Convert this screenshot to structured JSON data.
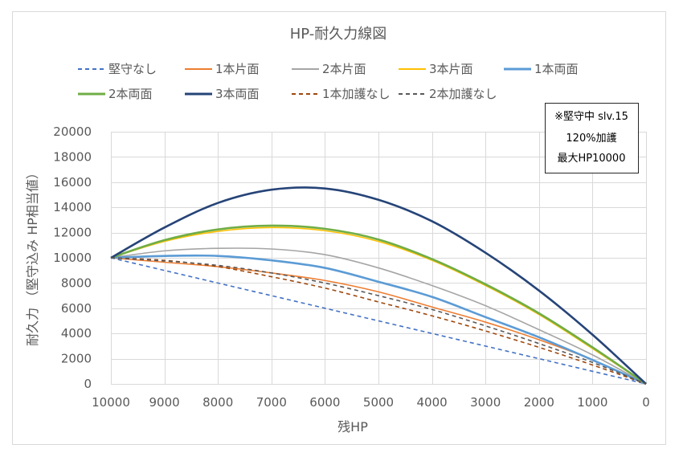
{
  "chart_data": {
    "type": "line",
    "title": "HP-耐久力線図",
    "xlabel": "残HP",
    "ylabel": "耐久力 （堅守込み HP相当値）",
    "xlim": [
      10000,
      0
    ],
    "ylim": [
      0,
      20000
    ],
    "x_reversed": true,
    "x_ticks": [
      "10000",
      "9000",
      "8000",
      "7000",
      "6000",
      "5000",
      "4000",
      "3000",
      "2000",
      "1000",
      "0"
    ],
    "y_ticks": [
      "0",
      "2000",
      "4000",
      "6000",
      "8000",
      "10000",
      "12000",
      "14000",
      "16000",
      "18000",
      "20000"
    ],
    "grid": true,
    "legend_position": "top",
    "x": [
      10000,
      9000,
      8000,
      7000,
      6000,
      5000,
      4000,
      3000,
      2000,
      1000,
      0
    ],
    "series": [
      {
        "name": "堅守なし",
        "color": "#4472C4",
        "dash": true,
        "width": 1.6,
        "values": [
          10000,
          9000,
          8000,
          7000,
          6000,
          5000,
          4000,
          3000,
          2000,
          1000,
          0
        ]
      },
      {
        "name": "1本片面",
        "color": "#ED7D31",
        "dash": false,
        "width": 1.6,
        "values": [
          10000,
          9650,
          9300,
          8800,
          8200,
          7300,
          6100,
          4900,
          3500,
          1900,
          0
        ]
      },
      {
        "name": "2本片面",
        "color": "#A5A5A5",
        "dash": false,
        "width": 1.6,
        "values": [
          10000,
          10550,
          10750,
          10700,
          10250,
          9200,
          7800,
          6200,
          4300,
          2300,
          0
        ]
      },
      {
        "name": "3本片面",
        "color": "#FFC000",
        "dash": false,
        "width": 1.6,
        "values": [
          10000,
          11300,
          12100,
          12400,
          12150,
          11300,
          9800,
          7800,
          5500,
          2800,
          0
        ]
      },
      {
        "name": "1本両面",
        "color": "#5B9BD5",
        "dash": false,
        "width": 2.6,
        "values": [
          10000,
          10150,
          10150,
          9800,
          9200,
          8100,
          6900,
          5300,
          3700,
          1900,
          0
        ]
      },
      {
        "name": "2本両面",
        "color": "#70AD47",
        "dash": false,
        "width": 2.6,
        "values": [
          10000,
          11400,
          12250,
          12550,
          12300,
          11450,
          9900,
          7900,
          5600,
          2900,
          0
        ]
      },
      {
        "name": "3本両面",
        "color": "#264478",
        "dash": false,
        "width": 2.6,
        "values": [
          10000,
          12400,
          14350,
          15400,
          15500,
          14600,
          12900,
          10400,
          7400,
          3900,
          0
        ]
      },
      {
        "name": "1本加護なし",
        "color": "#9E480E",
        "dash": true,
        "width": 1.6,
        "values": [
          10000,
          9800,
          9300,
          8500,
          7600,
          6500,
          5400,
          4200,
          2900,
          1500,
          0
        ]
      },
      {
        "name": "2本加護なし",
        "color": "#595959",
        "dash": true,
        "width": 1.6,
        "values": [
          10000,
          9750,
          9400,
          8800,
          8000,
          7000,
          5900,
          4600,
          3200,
          1700,
          0
        ]
      }
    ],
    "annotation": [
      "※堅守中 slv.15",
      "120%加護",
      "最大HP10000"
    ]
  }
}
